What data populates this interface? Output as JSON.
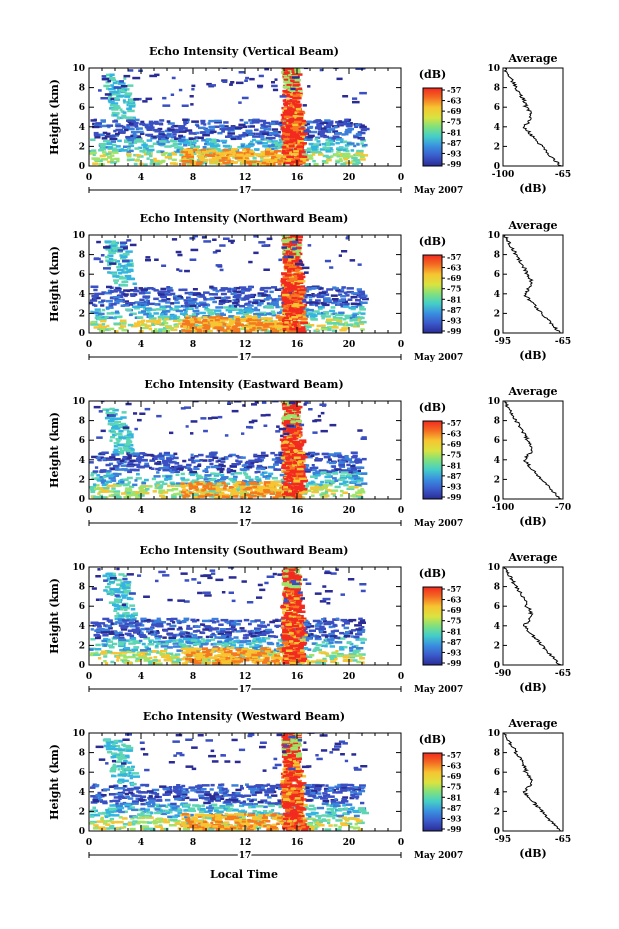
{
  "chart_data": [
    {
      "type": "heatmap",
      "title": "Echo Intensity (Vertical Beam)",
      "ylabel": "Height (km)",
      "xticks": [
        "0",
        "4",
        "8",
        "12",
        "16",
        "20",
        "0"
      ],
      "yticks": [
        "0",
        "2",
        "4",
        "6",
        "8",
        "10"
      ],
      "day_label": "17",
      "month_label": "May 2007",
      "colorbar_unit": "(dB)",
      "colorbar_ticks": [
        "-57",
        "-63",
        "-69",
        "-75",
        "-81",
        "-87",
        "-93",
        "-99"
      ],
      "average": {
        "title": "Average",
        "xlabel": "(dB)",
        "xticks": [
          "-100",
          "-65"
        ],
        "xlim": [
          -100,
          -65
        ],
        "yticks": [
          "0",
          "2",
          "4",
          "6",
          "8",
          "10"
        ]
      }
    },
    {
      "type": "heatmap",
      "title": "Echo Intensity (Northward Beam)",
      "ylabel": "Height (km)",
      "xticks": [
        "0",
        "4",
        "8",
        "12",
        "16",
        "20",
        "0"
      ],
      "yticks": [
        "0",
        "2",
        "4",
        "6",
        "8",
        "10"
      ],
      "day_label": "17",
      "month_label": "May 2007",
      "colorbar_unit": "(dB)",
      "colorbar_ticks": [
        "-57",
        "-63",
        "-69",
        "-75",
        "-81",
        "-87",
        "-93",
        "-99"
      ],
      "average": {
        "title": "Average",
        "xlabel": "(dB)",
        "xticks": [
          "-95",
          "-65"
        ],
        "xlim": [
          -95,
          -65
        ],
        "yticks": [
          "0",
          "2",
          "4",
          "6",
          "8",
          "10"
        ]
      }
    },
    {
      "type": "heatmap",
      "title": "Echo Intensity (Eastward Beam)",
      "ylabel": "Height (km)",
      "xticks": [
        "0",
        "4",
        "8",
        "12",
        "16",
        "20",
        "0"
      ],
      "yticks": [
        "0",
        "2",
        "4",
        "6",
        "8",
        "10"
      ],
      "day_label": "17",
      "month_label": "May 2007",
      "colorbar_unit": "(dB)",
      "colorbar_ticks": [
        "-57",
        "-63",
        "-69",
        "-75",
        "-81",
        "-87",
        "-93",
        "-99"
      ],
      "average": {
        "title": "Average",
        "xlabel": "(dB)",
        "xticks": [
          "-100",
          "-70"
        ],
        "xlim": [
          -100,
          -70
        ],
        "yticks": [
          "0",
          "2",
          "4",
          "6",
          "8",
          "10"
        ]
      }
    },
    {
      "type": "heatmap",
      "title": "Echo Intensity (Southward Beam)",
      "ylabel": "Height (km)",
      "xticks": [
        "0",
        "4",
        "8",
        "12",
        "16",
        "20",
        "0"
      ],
      "yticks": [
        "0",
        "2",
        "4",
        "6",
        "8",
        "10"
      ],
      "day_label": "17",
      "month_label": "May 2007",
      "colorbar_unit": "(dB)",
      "colorbar_ticks": [
        "-57",
        "-63",
        "-69",
        "-75",
        "-81",
        "-87",
        "-93",
        "-99"
      ],
      "average": {
        "title": "Average",
        "xlabel": "(dB)",
        "xticks": [
          "-90",
          "-65"
        ],
        "xlim": [
          -90,
          -65
        ],
        "yticks": [
          "0",
          "2",
          "4",
          "6",
          "8",
          "10"
        ]
      }
    },
    {
      "type": "heatmap",
      "title": "Echo Intensity (Westward Beam)",
      "ylabel": "Height (km)",
      "xticks": [
        "0",
        "4",
        "8",
        "12",
        "16",
        "20",
        "0"
      ],
      "yticks": [
        "0",
        "2",
        "4",
        "6",
        "8",
        "10"
      ],
      "day_label": "17",
      "month_label": "May 2007",
      "colorbar_unit": "(dB)",
      "colorbar_ticks": [
        "-57",
        "-63",
        "-69",
        "-75",
        "-81",
        "-87",
        "-93",
        "-99"
      ],
      "average": {
        "title": "Average",
        "xlabel": "(dB)",
        "xticks": [
          "-95",
          "-65"
        ],
        "xlim": [
          -95,
          -65
        ],
        "yticks": [
          "0",
          "2",
          "4",
          "6",
          "8",
          "10"
        ]
      }
    }
  ],
  "xlabel": "Local Time",
  "colors": {
    "scale": [
      "#f22a1f",
      "#f57a1f",
      "#f7c531",
      "#e8e03c",
      "#9fe36a",
      "#5ed6b3",
      "#34b4e0",
      "#3a7fd9",
      "#3a4fc2",
      "#2a2c94"
    ]
  }
}
